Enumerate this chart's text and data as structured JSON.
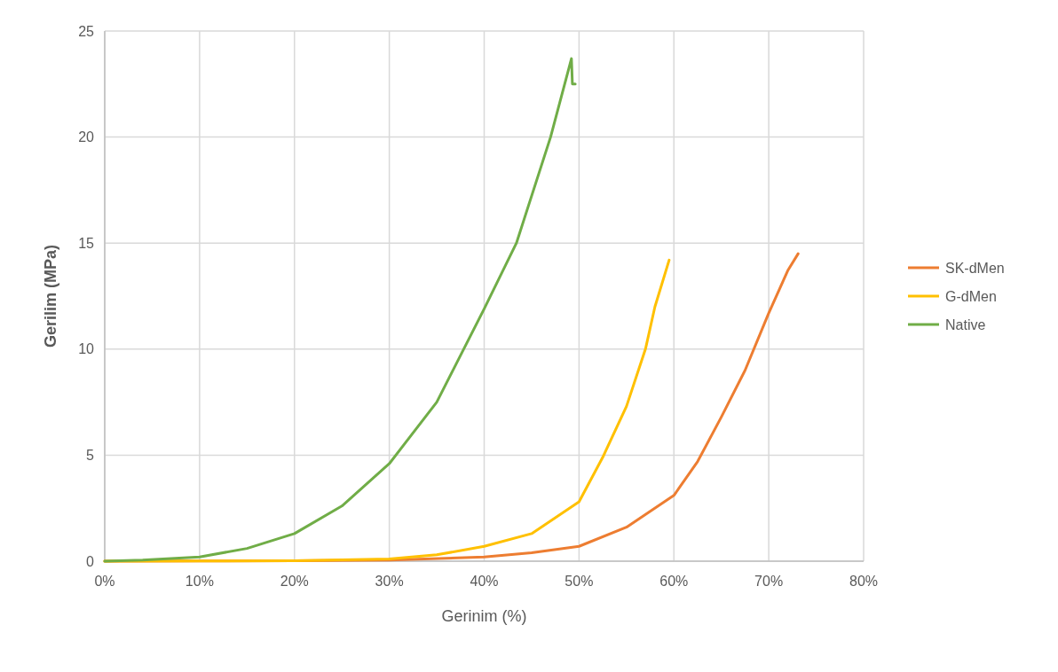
{
  "chart_data": {
    "type": "line",
    "xlabel": "Gerinim (%)",
    "ylabel": "Gerilim (MPa)",
    "xlim": [
      0,
      80
    ],
    "xticks": [
      {
        "value": 0,
        "label": "0%"
      },
      {
        "value": 10,
        "label": "10%"
      },
      {
        "value": 20,
        "label": "20%"
      },
      {
        "value": 30,
        "label": "30%"
      },
      {
        "value": 40,
        "label": "40%"
      },
      {
        "value": 50,
        "label": "50%"
      },
      {
        "value": 60,
        "label": "60%"
      },
      {
        "value": 70,
        "label": "70%"
      },
      {
        "value": 80,
        "label": "80%"
      }
    ],
    "ylim": [
      0,
      25
    ],
    "yticks": [
      0,
      5,
      10,
      15,
      20,
      25
    ],
    "grid": true,
    "legend": "right",
    "marker": "none",
    "line_style": "solid",
    "series": [
      {
        "name": "SK-dMen",
        "color": "#ed7d31",
        "x": [
          0,
          10,
          20,
          30,
          40,
          45,
          50,
          55,
          60,
          62.5,
          65,
          67.5,
          70,
          72,
          73.1
        ],
        "values": [
          0,
          0.01,
          0.02,
          0.05,
          0.2,
          0.4,
          0.7,
          1.6,
          3.1,
          4.7,
          6.8,
          9,
          11.7,
          13.7,
          14.5
        ]
      },
      {
        "name": "G-dMen",
        "color": "#ffc000",
        "x": [
          0,
          10,
          20,
          30,
          35,
          40,
          45,
          50,
          52.5,
          55,
          57,
          58,
          59.5
        ],
        "values": [
          0,
          0.01,
          0.02,
          0.1,
          0.3,
          0.7,
          1.3,
          2.8,
          4.9,
          7.3,
          10,
          12,
          14.2
        ]
      },
      {
        "name": "Native",
        "color": "#70ad47",
        "x": [
          0,
          4,
          10,
          15,
          20,
          25,
          30,
          35,
          40,
          43.4,
          47,
          49.2,
          49.3,
          49.6
        ],
        "values": [
          0,
          0.05,
          0.2,
          0.6,
          1.3,
          2.6,
          4.6,
          7.5,
          11.9,
          15,
          20,
          23.7,
          22.5,
          22.5
        ]
      }
    ]
  }
}
